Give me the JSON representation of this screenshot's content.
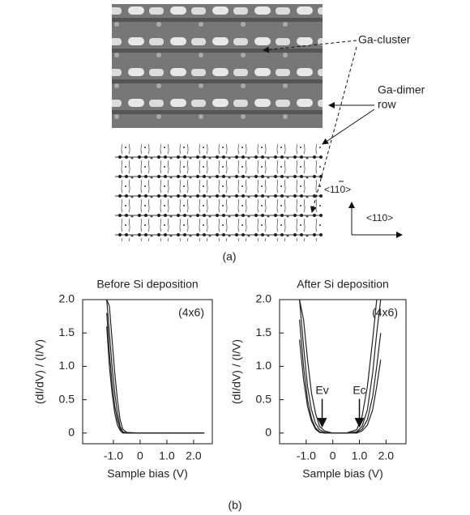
{
  "panel_a": {
    "label": "(a)",
    "ga_cluster": "Ga-cluster",
    "ga_dimer_row": [
      "Ga-dimer",
      "row"
    ],
    "direction_vertical": "<110>",
    "direction_horizontal": "<110>"
  },
  "panel_b_label": "(b)",
  "chart_data": [
    {
      "type": "line",
      "title": "Before Si deposition",
      "x_label": "Sample bias (V)",
      "y_label": "(dI/dV) / (I/V)",
      "note": "(4x6)",
      "x": [
        -1.25,
        -1.15,
        -1.05,
        -0.95,
        -0.85,
        -0.75,
        -0.65,
        -0.5,
        0,
        0.5,
        1.0,
        1.5,
        2.0,
        2.4
      ],
      "series": [
        {
          "color": "#222222",
          "values": [
            2.0,
            1.5,
            1.0,
            0.6,
            0.3,
            0.1,
            0.02,
            0,
            0,
            0,
            0,
            0,
            0,
            0
          ]
        },
        {
          "color": "#222222",
          "values": [
            1.8,
            1.2,
            0.75,
            0.4,
            0.2,
            0.07,
            0.01,
            0,
            0,
            0,
            0,
            0,
            0,
            0
          ]
        },
        {
          "color": "#222222",
          "values": [
            2.0,
            1.9,
            1.4,
            0.9,
            0.5,
            0.2,
            0.06,
            0.01,
            0,
            0,
            0,
            0,
            0,
            0
          ]
        },
        {
          "color": "#222222",
          "values": [
            1.6,
            1.0,
            0.6,
            0.3,
            0.12,
            0.04,
            0,
            0,
            0,
            0,
            0,
            0,
            0,
            0
          ]
        }
      ],
      "xlim": [
        -2.15,
        2.7
      ],
      "ylim": [
        -0.16,
        2.0
      ],
      "xticks": [
        {
          "value": -1,
          "label": "-1.0"
        },
        0,
        {
          "value": 1,
          "label": "1.0"
        },
        {
          "value": 2,
          "label": "2.0"
        }
      ],
      "yticks": [
        0,
        0.5,
        {
          "value": 1,
          "label": "1.0"
        },
        1.5,
        {
          "value": 2,
          "label": "2.0"
        }
      ]
    },
    {
      "type": "line",
      "title": "After Si deposition",
      "x_label": "Sample bias (V)",
      "y_label": "(dI/dV) / (I/V)",
      "note": "(4x6)",
      "x": [
        -1.25,
        -1.1,
        -0.95,
        -0.8,
        -0.65,
        -0.5,
        -0.3,
        0,
        0.5,
        0.9,
        1.1,
        1.3,
        1.5,
        1.65,
        1.8
      ],
      "series": [
        {
          "color": "#222222",
          "values": [
            2.0,
            1.3,
            0.7,
            0.35,
            0.15,
            0.05,
            0.01,
            0,
            0,
            0.02,
            0.1,
            0.35,
            0.9,
            1.5,
            2.0
          ]
        },
        {
          "color": "#222222",
          "values": [
            1.7,
            1.0,
            0.5,
            0.22,
            0.08,
            0.02,
            0,
            0,
            0,
            0.01,
            0.06,
            0.2,
            0.55,
            1.0,
            1.5
          ]
        },
        {
          "color": "#222222",
          "values": [
            2.0,
            1.7,
            1.1,
            0.6,
            0.3,
            0.1,
            0.03,
            0,
            0,
            0.05,
            0.25,
            0.7,
            1.4,
            2.0,
            null
          ]
        },
        {
          "color": "#222222",
          "values": [
            1.4,
            0.8,
            0.4,
            0.18,
            0.06,
            0.01,
            0,
            0,
            0,
            0,
            0.03,
            0.12,
            0.35,
            0.7,
            1.1
          ]
        }
      ],
      "annotations": [
        {
          "text": "Ev",
          "x": -0.4,
          "y": 0.1
        },
        {
          "text": "Ec",
          "x": 1.0,
          "y": 0.1
        }
      ],
      "xlim": [
        -2.0,
        2.75
      ],
      "ylim": [
        -0.16,
        2.0
      ],
      "xticks": [
        {
          "value": -1,
          "label": "-1.0"
        },
        0,
        {
          "value": 1,
          "label": "1.0"
        },
        {
          "value": 2,
          "label": "2.0"
        }
      ],
      "yticks": [
        0,
        0.5,
        {
          "value": 1,
          "label": "1.0"
        },
        1.5,
        {
          "value": 2,
          "label": "2.0"
        }
      ]
    }
  ]
}
